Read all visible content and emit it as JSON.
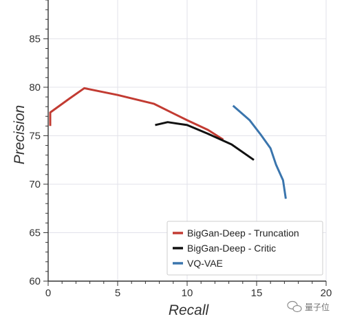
{
  "chart_data": {
    "type": "line",
    "title": "",
    "xlabel": "Recall",
    "ylabel": "Precision",
    "xlim": [
      0,
      20
    ],
    "ylim": [
      60,
      89
    ],
    "xticks": [
      0,
      5,
      10,
      15,
      20
    ],
    "yticks": [
      60,
      65,
      70,
      75,
      80,
      85
    ],
    "x_tick_labels": [
      "0",
      "5",
      "10",
      "15",
      "20"
    ],
    "y_tick_labels": [
      "60",
      "65",
      "70",
      "75",
      "80",
      "85"
    ],
    "grid": true,
    "legend_position": "bottom-right",
    "series": [
      {
        "name": "BigGan-Deep - Truncation",
        "color": "#c23b32",
        "points": [
          [
            0.15,
            76.0
          ],
          [
            0.15,
            77.4
          ],
          [
            1.5,
            78.8
          ],
          [
            2.6,
            79.9
          ],
          [
            5.0,
            79.2
          ],
          [
            7.6,
            78.3
          ],
          [
            10.0,
            76.6
          ],
          [
            11.5,
            75.6
          ],
          [
            12.6,
            74.6
          ]
        ]
      },
      {
        "name": "BigGan-Deep - Critic",
        "color": "#111111",
        "points": [
          [
            7.7,
            76.1
          ],
          [
            8.6,
            76.4
          ],
          [
            10.0,
            76.1
          ],
          [
            11.5,
            75.2
          ],
          [
            13.2,
            74.1
          ],
          [
            14.8,
            72.5
          ]
        ]
      },
      {
        "name": "VQ-VAE",
        "color": "#3a75ad",
        "points": [
          [
            13.3,
            78.1
          ],
          [
            14.5,
            76.6
          ],
          [
            15.3,
            75.1
          ],
          [
            16.0,
            73.7
          ],
          [
            16.4,
            72.0
          ],
          [
            16.9,
            70.4
          ],
          [
            17.1,
            68.5
          ]
        ]
      }
    ]
  },
  "watermark": {
    "text": "量子位",
    "icon": "wechat-icon"
  }
}
